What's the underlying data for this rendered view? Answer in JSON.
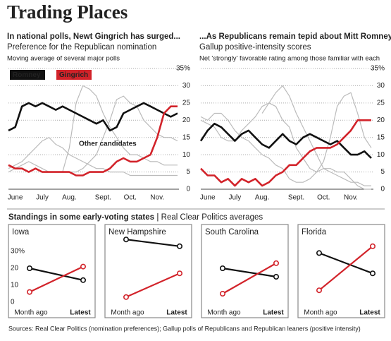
{
  "title": "Trading Places",
  "section": "Standings in some early-voting states",
  "section_note": "Real Clear Politics averages",
  "source": "Sources: Real Clear Politics (nomination preferences); Gallup polls of Republicans and Republican leaners (positive intensity)",
  "chart_data": [
    {
      "type": "line",
      "title": "In national polls, Newt Gingrich has surged...",
      "subtitle": "Preference for the Republican nomination",
      "note": "Moving average of several major polls",
      "annotation": "Other candidates",
      "categories": [
        null,
        "June",
        null,
        null,
        null,
        "July",
        null,
        null,
        null,
        "Aug.",
        null,
        null,
        null,
        null,
        "Sept.",
        null,
        null,
        null,
        "Oct.",
        null,
        null,
        null,
        "Nov.",
        null,
        null,
        null
      ],
      "series": [
        {
          "color": "#bbbbbb",
          "values": [
            null,
            null,
            null,
            null,
            null,
            null,
            null,
            null,
            5,
            12,
            25,
            30,
            29,
            27,
            22,
            18,
            15,
            12,
            10,
            10,
            9,
            8,
            8,
            7,
            7,
            7
          ]
        },
        {
          "color": "#bbbbbb",
          "values": [
            5,
            6,
            7,
            8,
            7,
            6,
            5,
            5,
            5,
            5,
            5,
            6,
            8,
            10,
            15,
            20,
            26,
            27,
            25,
            24,
            20,
            18,
            16,
            15,
            15,
            14
          ]
        },
        {
          "color": "#bbbbbb",
          "values": [
            6,
            7,
            8,
            10,
            12,
            14,
            15,
            13,
            12,
            10,
            9,
            8,
            7,
            6,
            6,
            5,
            5,
            5,
            4,
            4,
            4,
            4,
            4,
            4,
            4,
            4
          ]
        },
        {
          "name": "Romney",
          "color": "#111111",
          "values": [
            17,
            18,
            24,
            25,
            24,
            25,
            24,
            23,
            24,
            23,
            22,
            21,
            20,
            19,
            20,
            17,
            18,
            22,
            23,
            24,
            25,
            24,
            23,
            22,
            21,
            22
          ]
        },
        {
          "name": "Gingrich",
          "color": "#d2232a",
          "values": [
            7,
            6,
            6,
            5,
            6,
            5,
            5,
            5,
            5,
            5,
            4,
            4,
            5,
            5,
            5,
            6,
            8,
            9,
            8,
            8,
            9,
            10,
            15,
            22,
            24,
            24
          ]
        }
      ],
      "ylim": [
        0,
        35
      ],
      "yticks": [
        0,
        5,
        10,
        15,
        20,
        25,
        30,
        {
          "value": 35,
          "label": "35%"
        }
      ],
      "grid": true,
      "legend": "top-left"
    },
    {
      "type": "line",
      "title": "...As Republicans remain tepid about Mitt Romney",
      "subtitle": "Gallup positive-intensity scores",
      "note": "Net 'strongly' favorable rating among those familiar with each",
      "categories": [
        null,
        "June",
        null,
        null,
        null,
        "July",
        null,
        null,
        null,
        "Aug.",
        null,
        null,
        null,
        null,
        "Sept.",
        null,
        null,
        null,
        "Oct.",
        null,
        null,
        null,
        "Nov.",
        null,
        null,
        null
      ],
      "series": [
        {
          "color": "#bbbbbb",
          "values": [
            null,
            null,
            null,
            null,
            null,
            null,
            null,
            null,
            null,
            22,
            25,
            28,
            30,
            27,
            22,
            18,
            14,
            10,
            6,
            5,
            4,
            3,
            2,
            2,
            1,
            1
          ]
        },
        {
          "color": "#bbbbbb",
          "values": [
            20,
            19,
            18,
            15,
            14,
            14,
            17,
            19,
            21,
            24,
            25,
            24,
            20,
            18,
            12,
            9,
            6,
            5,
            6,
            6,
            5,
            5,
            3,
            1,
            0,
            0
          ]
        },
        {
          "color": "#bbbbbb",
          "values": [
            21,
            20,
            22,
            22,
            20,
            17,
            15,
            14,
            12,
            10,
            9,
            7,
            6,
            3,
            2,
            2,
            3,
            5,
            8,
            15,
            24,
            27,
            28,
            22,
            15,
            12
          ]
        },
        {
          "color": "#111111",
          "values": [
            14,
            17,
            19,
            18,
            16,
            14,
            16,
            17,
            15,
            13,
            12,
            14,
            16,
            14,
            13,
            15,
            16,
            15,
            14,
            13,
            14,
            12,
            10,
            10,
            11,
            9
          ]
        },
        {
          "color": "#d2232a",
          "values": [
            6,
            4,
            4,
            2,
            3,
            1,
            3,
            2,
            3,
            1,
            2,
            4,
            5,
            7,
            7,
            9,
            11,
            12,
            12,
            12,
            13,
            15,
            17,
            20,
            20,
            20
          ]
        }
      ],
      "ylim": [
        0,
        35
      ],
      "yticks": [
        0,
        5,
        10,
        15,
        20,
        25,
        30,
        {
          "value": 35,
          "label": "35%"
        }
      ],
      "grid": true
    },
    {
      "type": "line",
      "title": "Iowa",
      "categories": [
        "Month ago",
        "Latest"
      ],
      "series": [
        {
          "color": "#111111",
          "values": [
            20,
            13
          ]
        },
        {
          "color": "#d2232a",
          "values": [
            6,
            21
          ]
        }
      ],
      "ylim": [
        0,
        40
      ],
      "yticks": [
        0,
        10,
        20,
        {
          "value": 30,
          "label": "30%"
        }
      ],
      "grid": false
    },
    {
      "type": "line",
      "title": "New Hampshire",
      "categories": [
        "Month ago",
        "Latest"
      ],
      "series": [
        {
          "color": "#111111",
          "values": [
            37,
            33
          ]
        },
        {
          "color": "#d2232a",
          "values": [
            3,
            17
          ]
        }
      ],
      "ylim": [
        0,
        40
      ],
      "grid": false
    },
    {
      "type": "line",
      "title": "South Carolina",
      "categories": [
        "Month ago",
        "Latest"
      ],
      "series": [
        {
          "color": "#111111",
          "values": [
            20,
            15
          ]
        },
        {
          "color": "#d2232a",
          "values": [
            5,
            23
          ]
        }
      ],
      "ylim": [
        0,
        40
      ],
      "grid": false
    },
    {
      "type": "line",
      "title": "Florida",
      "categories": [
        "Month ago",
        "Latest"
      ],
      "series": [
        {
          "color": "#111111",
          "values": [
            29,
            17
          ]
        },
        {
          "color": "#d2232a",
          "values": [
            7,
            33
          ]
        }
      ],
      "ylim": [
        0,
        40
      ],
      "grid": false
    }
  ]
}
